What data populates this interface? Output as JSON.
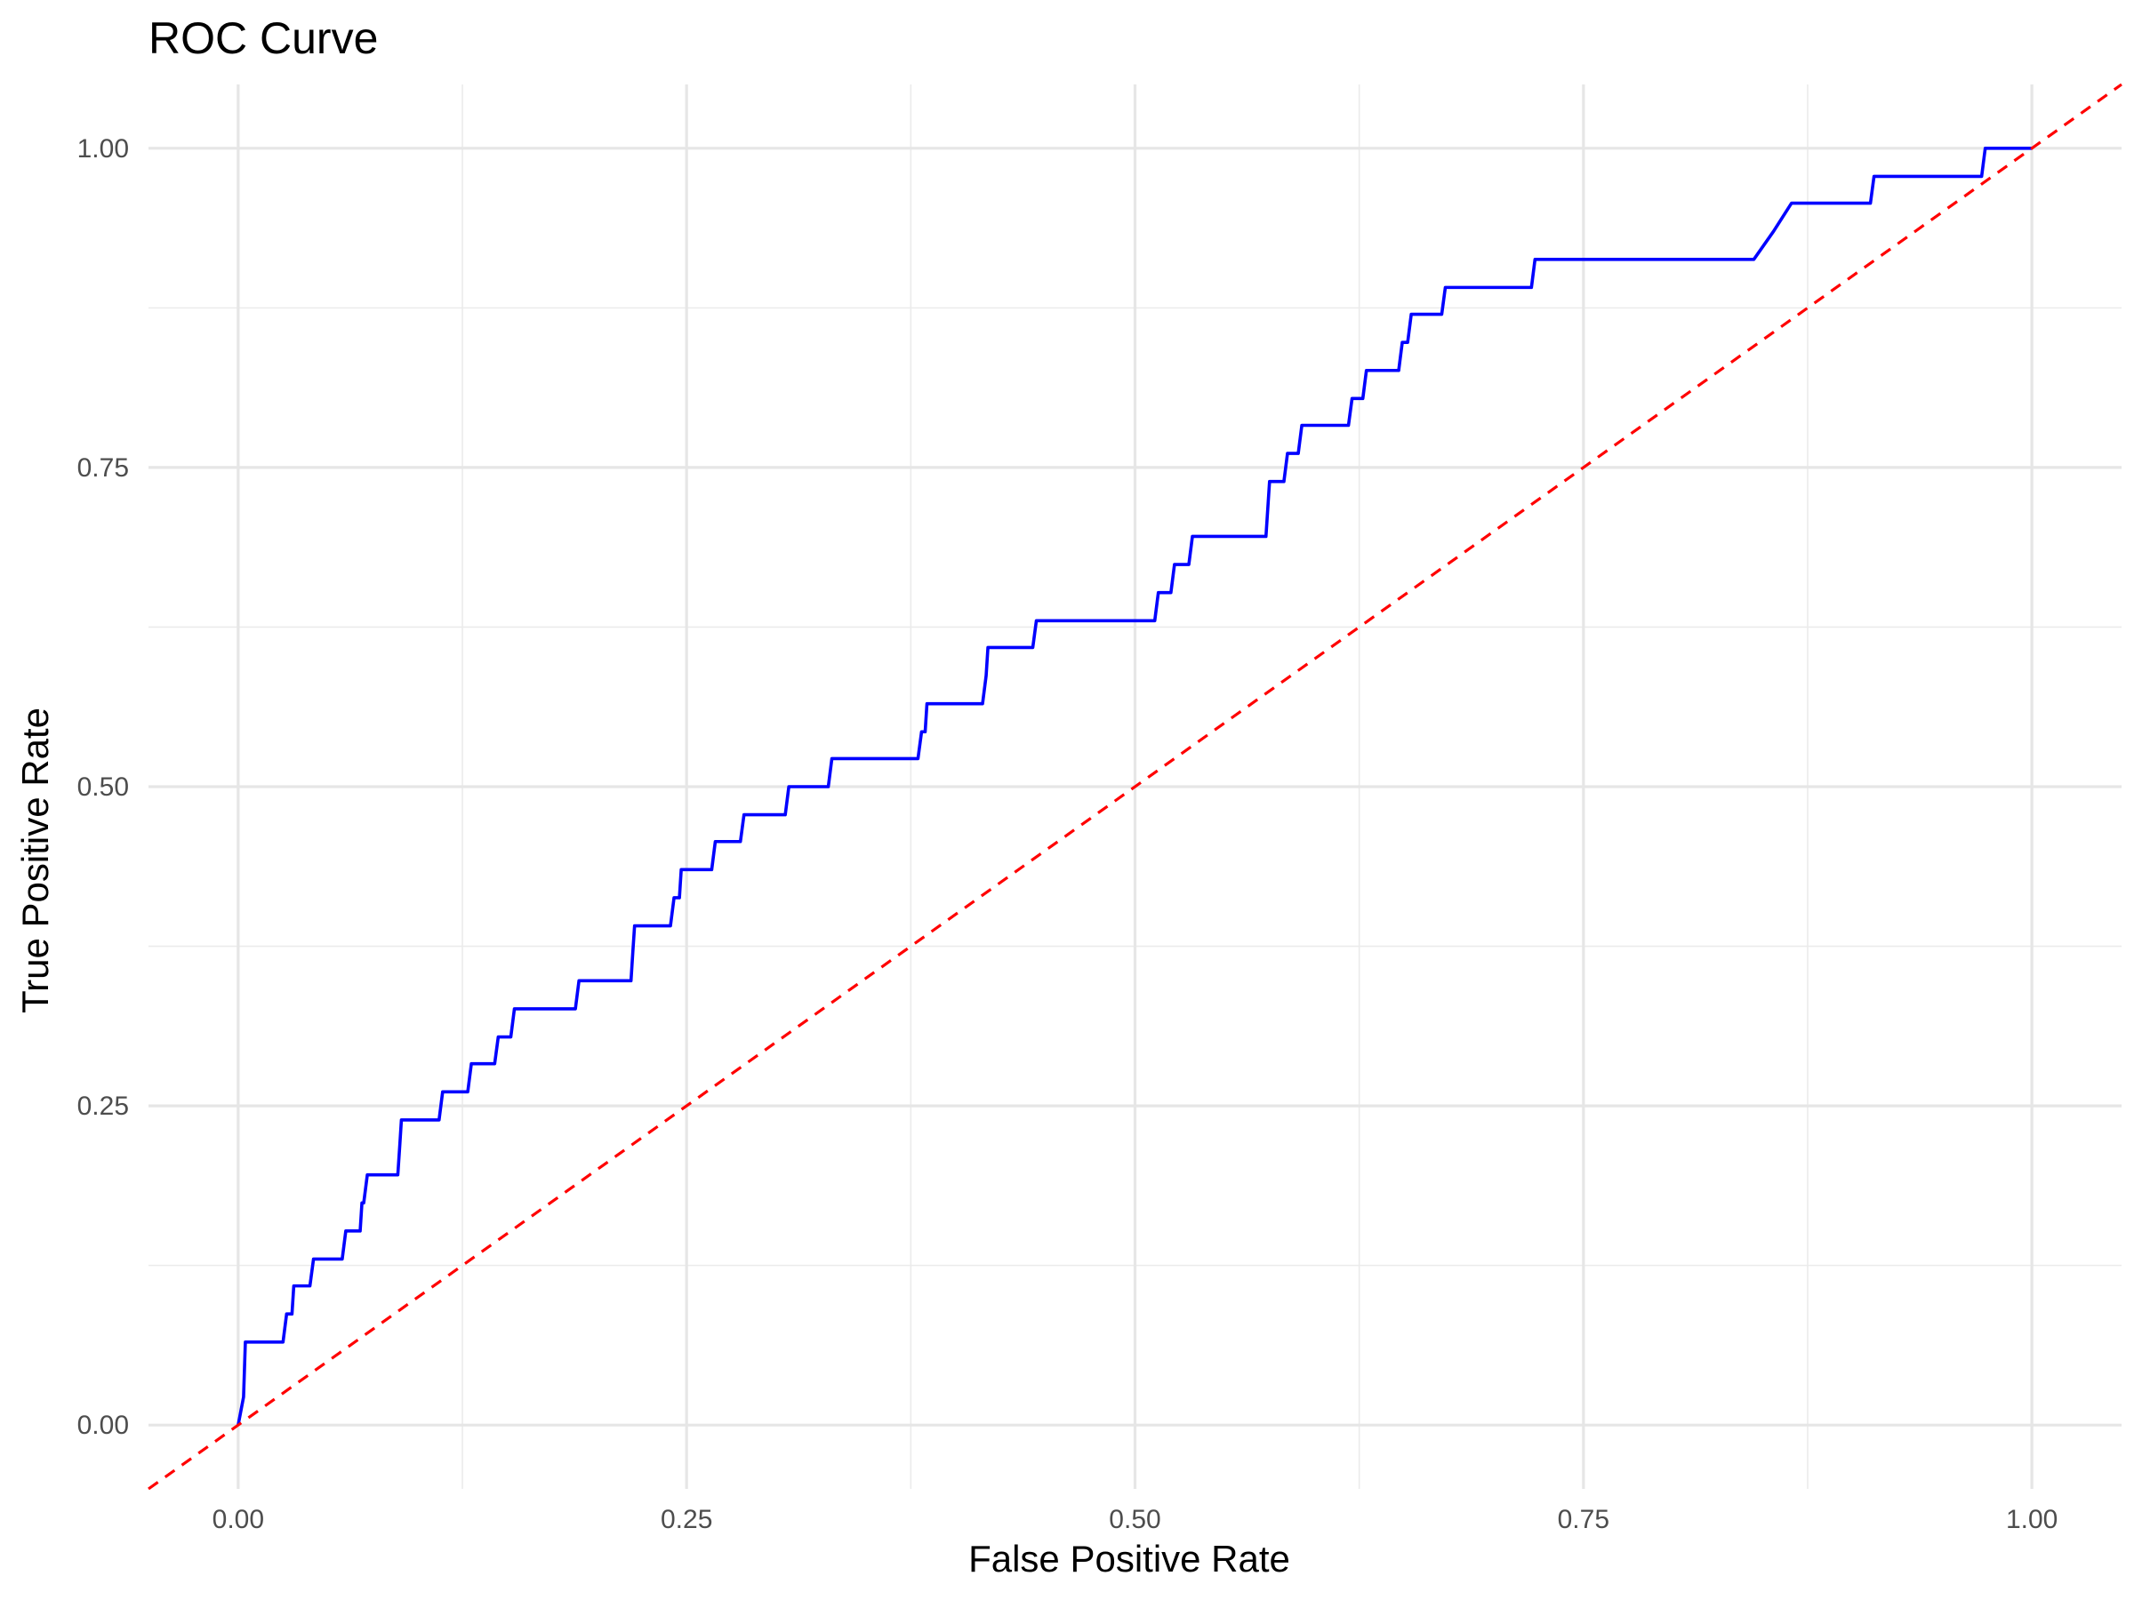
{
  "chart_data": {
    "type": "line",
    "title": "ROC Curve",
    "xlabel": "False Positive Rate",
    "ylabel": "True Positive Rate",
    "xlim": [
      -0.05,
      1.05
    ],
    "ylim": [
      -0.05,
      1.05
    ],
    "x_ticks": [
      0.0,
      0.25,
      0.5,
      0.75,
      1.0
    ],
    "x_tick_labels": [
      "0.00",
      "0.25",
      "0.50",
      "0.75",
      "1.00"
    ],
    "y_ticks": [
      0.0,
      0.25,
      0.5,
      0.75,
      1.0
    ],
    "y_tick_labels": [
      "0.00",
      "0.25",
      "0.50",
      "0.75",
      "1.00"
    ],
    "grid": true,
    "legend": "none",
    "series": [
      {
        "style": "solid",
        "color": "#0000ff",
        "points": [
          [
            0.0,
            0.0
          ],
          [
            0.003,
            0.022
          ],
          [
            0.004,
            0.065
          ],
          [
            0.025,
            0.065
          ],
          [
            0.027,
            0.087
          ],
          [
            0.03,
            0.087
          ],
          [
            0.031,
            0.109
          ],
          [
            0.04,
            0.109
          ],
          [
            0.042,
            0.13
          ],
          [
            0.058,
            0.13
          ],
          [
            0.06,
            0.152
          ],
          [
            0.068,
            0.152
          ],
          [
            0.069,
            0.174
          ],
          [
            0.07,
            0.174
          ],
          [
            0.072,
            0.196
          ],
          [
            0.089,
            0.196
          ],
          [
            0.09,
            0.217
          ],
          [
            0.091,
            0.239
          ],
          [
            0.112,
            0.239
          ],
          [
            0.114,
            0.261
          ],
          [
            0.128,
            0.261
          ],
          [
            0.13,
            0.283
          ],
          [
            0.143,
            0.283
          ],
          [
            0.145,
            0.304
          ],
          [
            0.152,
            0.304
          ],
          [
            0.154,
            0.326
          ],
          [
            0.188,
            0.326
          ],
          [
            0.19,
            0.348
          ],
          [
            0.219,
            0.348
          ],
          [
            0.22,
            0.37
          ],
          [
            0.221,
            0.391
          ],
          [
            0.241,
            0.391
          ],
          [
            0.243,
            0.413
          ],
          [
            0.246,
            0.413
          ],
          [
            0.247,
            0.435
          ],
          [
            0.264,
            0.435
          ],
          [
            0.266,
            0.457
          ],
          [
            0.28,
            0.457
          ],
          [
            0.282,
            0.478
          ],
          [
            0.305,
            0.478
          ],
          [
            0.307,
            0.5
          ],
          [
            0.329,
            0.5
          ],
          [
            0.331,
            0.522
          ],
          [
            0.379,
            0.522
          ],
          [
            0.381,
            0.543
          ],
          [
            0.383,
            0.543
          ],
          [
            0.384,
            0.565
          ],
          [
            0.415,
            0.565
          ],
          [
            0.417,
            0.587
          ],
          [
            0.418,
            0.609
          ],
          [
            0.443,
            0.609
          ],
          [
            0.445,
            0.63
          ],
          [
            0.511,
            0.63
          ],
          [
            0.513,
            0.652
          ],
          [
            0.52,
            0.652
          ],
          [
            0.522,
            0.674
          ],
          [
            0.53,
            0.674
          ],
          [
            0.532,
            0.696
          ],
          [
            0.573,
            0.696
          ],
          [
            0.575,
            0.739
          ],
          [
            0.583,
            0.739
          ],
          [
            0.585,
            0.761
          ],
          [
            0.591,
            0.761
          ],
          [
            0.593,
            0.783
          ],
          [
            0.619,
            0.783
          ],
          [
            0.621,
            0.804
          ],
          [
            0.627,
            0.804
          ],
          [
            0.629,
            0.826
          ],
          [
            0.647,
            0.826
          ],
          [
            0.649,
            0.848
          ],
          [
            0.652,
            0.848
          ],
          [
            0.654,
            0.87
          ],
          [
            0.671,
            0.87
          ],
          [
            0.673,
            0.891
          ],
          [
            0.721,
            0.891
          ],
          [
            0.723,
            0.913
          ],
          [
            0.845,
            0.913
          ],
          [
            0.856,
            0.935
          ],
          [
            0.866,
            0.957
          ],
          [
            0.91,
            0.957
          ],
          [
            0.912,
            0.978
          ],
          [
            0.972,
            0.978
          ],
          [
            0.974,
            1.0
          ],
          [
            1.0,
            1.0
          ]
        ]
      },
      {
        "style": "dashed",
        "color": "#ff0000",
        "points": [
          [
            -0.05,
            -0.05
          ],
          [
            1.05,
            1.05
          ]
        ]
      }
    ]
  }
}
